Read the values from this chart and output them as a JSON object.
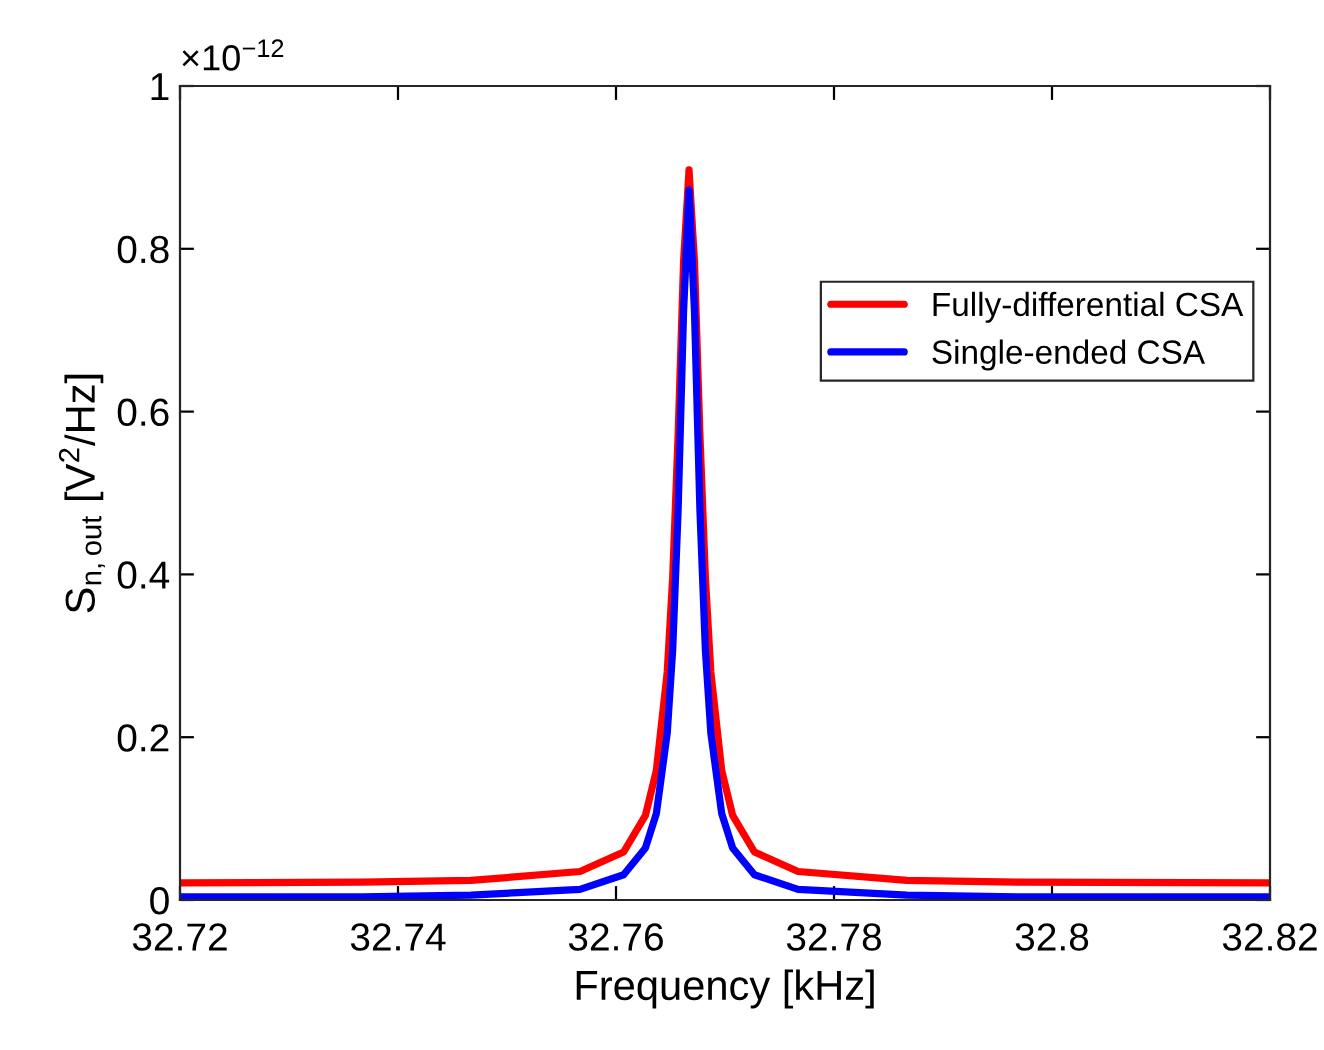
{
  "chart_data": {
    "type": "line",
    "xlabel": "Frequency [kHz]",
    "ylabel": "S$_{n,out}$ [V$^{2}$/Hz]",
    "annotations": [
      "×10$^{−12}$"
    ],
    "x": [
      32.72,
      32.7367,
      32.7467,
      32.7567,
      32.7607,
      32.7627,
      32.7637,
      32.7647,
      32.7652,
      32.7657,
      32.7662,
      32.7667,
      32.7672,
      32.7677,
      32.7682,
      32.7687,
      32.7697,
      32.7707,
      32.7727,
      32.7767,
      32.7867,
      32.7967,
      32.82
    ],
    "series": [
      {
        "name": "Fully-differential CSA",
        "color": "#ff0000",
        "values": [
          0.021,
          0.022,
          0.024,
          0.035,
          0.059,
          0.104,
          0.159,
          0.28,
          0.396,
          0.571,
          0.784,
          0.897,
          0.784,
          0.571,
          0.396,
          0.28,
          0.159,
          0.104,
          0.059,
          0.035,
          0.024,
          0.022,
          0.021
        ]
      },
      {
        "name": "Single-ended CSA",
        "color": "#0000ff",
        "values": [
          0.004,
          0.004,
          0.006,
          0.013,
          0.031,
          0.064,
          0.106,
          0.205,
          0.307,
          0.479,
          0.723,
          0.872,
          0.723,
          0.479,
          0.307,
          0.205,
          0.106,
          0.064,
          0.031,
          0.013,
          0.006,
          0.004,
          0.004
        ]
      }
    ],
    "xlim": [
      32.72,
      32.82
    ],
    "xticks": [
      32.72,
      32.74,
      32.76,
      32.78,
      32.8,
      32.82
    ],
    "ylim": [
      0,
      1
    ],
    "yticks": [
      0,
      0.2,
      0.4,
      0.6,
      0.8,
      1
    ],
    "grid": false,
    "legend": "top right",
    "marker": "none",
    "line_style": "solid"
  }
}
